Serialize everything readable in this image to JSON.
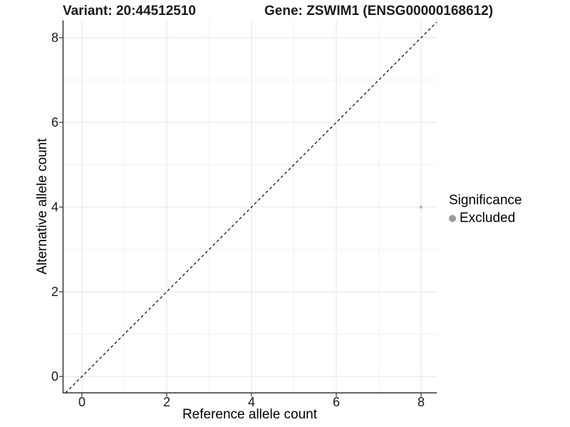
{
  "header": {
    "variant_title": "Variant: 20:44512510",
    "gene_title": "Gene: ZSWIM1 (ENSG00000168612)"
  },
  "chart_data": {
    "type": "scatter",
    "xlabel": "Reference allele count",
    "ylabel": "Alternative allele count",
    "xlim": [
      -0.42,
      8.42
    ],
    "ylim": [
      -0.42,
      8.42
    ],
    "xticks": [
      0,
      2,
      4,
      6,
      8
    ],
    "yticks": [
      0,
      2,
      4,
      6,
      8
    ],
    "minor_ticks": [
      1,
      3,
      5,
      7
    ],
    "grid": true,
    "identity_line": {
      "show": true,
      "style": "dashed",
      "color": "#000000"
    },
    "series": [
      {
        "name": "Excluded",
        "points": [
          {
            "x": 8,
            "y": 4
          }
        ],
        "color": "#b3b3b3"
      }
    ],
    "legend": {
      "title": "Significance",
      "position": "right",
      "items": [
        {
          "label": "Excluded",
          "color": "#999999"
        }
      ]
    }
  },
  "colors": {
    "background": "#ffffff",
    "grid_major": "#e6e6e6",
    "grid_minor": "#f2f2f2",
    "axis_line": "#333333",
    "tick_mark": "#333333",
    "point": "#b3b3b3",
    "legend_key": "#999999",
    "identity_line": "#000000"
  }
}
